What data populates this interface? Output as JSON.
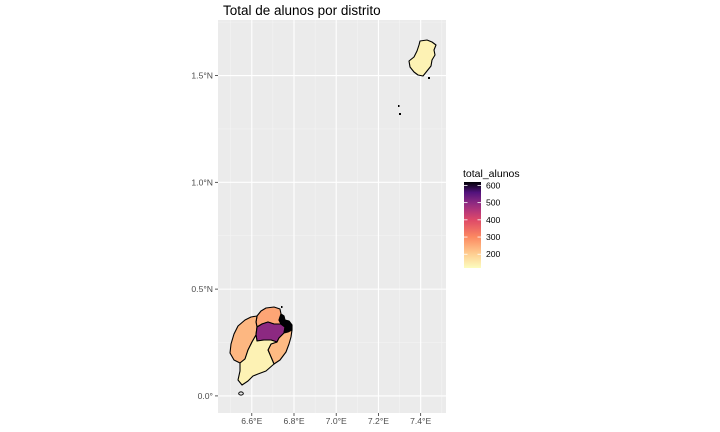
{
  "chart_data": {
    "type": "choropleth",
    "title": "Total de alunos por distrito",
    "x_ticks": [
      "6.6°E",
      "6.8°E",
      "7.0°E",
      "7.2°E",
      "7.4°E"
    ],
    "y_ticks": [
      "0.0°",
      "0.5°N",
      "1.0°N",
      "1.5°N"
    ],
    "x_tick_values": [
      6.6,
      6.8,
      7.0,
      7.2,
      7.4
    ],
    "y_tick_values": [
      0.0,
      0.5,
      1.0,
      1.5
    ],
    "xlim": [
      6.44,
      7.52
    ],
    "ylim": [
      -0.08,
      1.76
    ],
    "grid": true,
    "legend": {
      "title": "total_alunos",
      "position": "right",
      "breaks": [
        600,
        500,
        400,
        300,
        200
      ],
      "break_labels": [
        "600",
        "500",
        "400",
        "300",
        "200"
      ],
      "limits": [
        120,
        620
      ]
    },
    "color_scale": {
      "name": "magma",
      "stops": [
        {
          "value": 120,
          "color": "#fcfdbf"
        },
        {
          "value": 200,
          "color": "#fecf92"
        },
        {
          "value": 300,
          "color": "#fc8961"
        },
        {
          "value": 400,
          "color": "#de4968"
        },
        {
          "value": 450,
          "color": "#b73779"
        },
        {
          "value": 500,
          "color": "#8c2981"
        },
        {
          "value": 560,
          "color": "#51127c"
        },
        {
          "value": 620,
          "color": "#000004"
        }
      ]
    },
    "districts": [
      {
        "id": "principe",
        "value": 140
      },
      {
        "id": "sao-tome-northeast",
        "value": 620
      },
      {
        "id": "sao-tome-central",
        "value": 500
      },
      {
        "id": "sao-tome-north",
        "value": 260
      },
      {
        "id": "sao-tome-west",
        "value": 235
      },
      {
        "id": "sao-tome-east",
        "value": 230
      },
      {
        "id": "sao-tome-south",
        "value": 140
      }
    ]
  }
}
